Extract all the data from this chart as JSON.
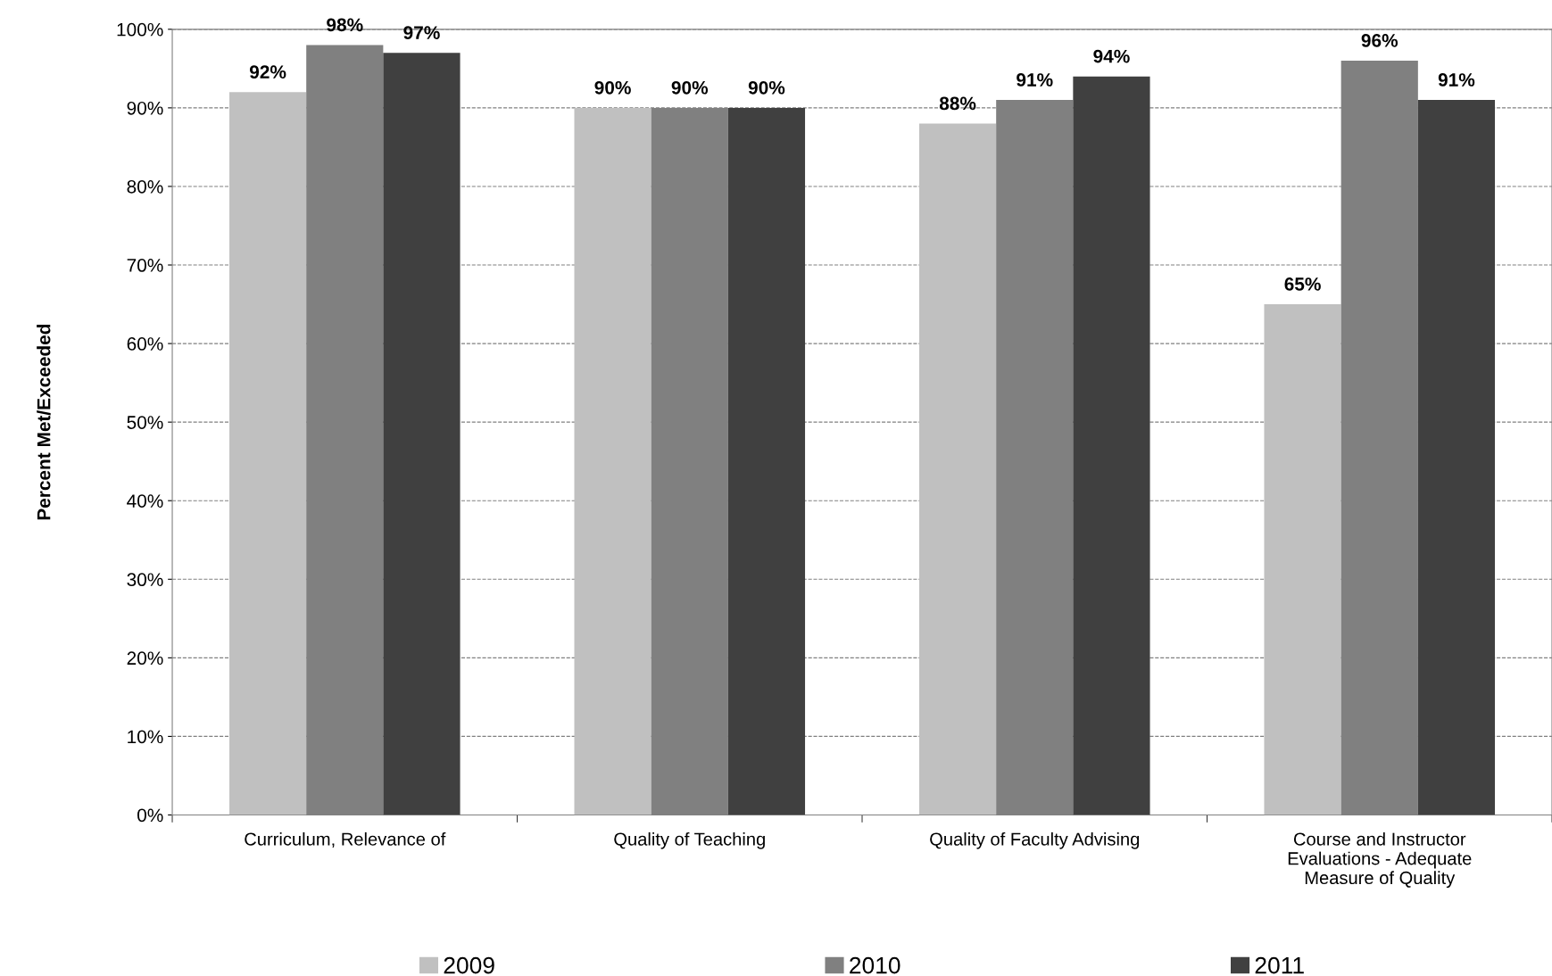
{
  "chart_data": {
    "type": "bar",
    "ylabel": "Percent Met/Exceeded",
    "categories": [
      "Curriculum, Relevance of",
      "Quality of Teaching",
      "Quality of Faculty Advising",
      "Course and Instructor\nEvaluations - Adequate\nMeasure of Quality"
    ],
    "series": [
      {
        "name": "2009",
        "color": "#c0c0c0",
        "values": [
          92,
          90,
          88,
          65
        ],
        "value_labels": [
          "92%",
          "90%",
          "88%",
          "65%"
        ]
      },
      {
        "name": "2010",
        "color": "#808080",
        "values": [
          98,
          90,
          91,
          96
        ],
        "value_labels": [
          "98%",
          "90%",
          "91%",
          "96%"
        ]
      },
      {
        "name": "2011",
        "color": "#404040",
        "values": [
          97,
          90,
          94,
          91
        ],
        "value_labels": [
          "97%",
          "90%",
          "94%",
          "91%"
        ]
      }
    ],
    "ylim": [
      0,
      100
    ],
    "yticks": [
      {
        "value": 0,
        "label": "0%"
      },
      {
        "value": 10,
        "label": "10%"
      },
      {
        "value": 20,
        "label": "20%"
      },
      {
        "value": 30,
        "label": "30%"
      },
      {
        "value": 40,
        "label": "40%"
      },
      {
        "value": 50,
        "label": "50%"
      },
      {
        "value": 60,
        "label": "60%"
      },
      {
        "value": 70,
        "label": "70%"
      },
      {
        "value": 80,
        "label": "80%"
      },
      {
        "value": 90,
        "label": "90%"
      },
      {
        "value": 100,
        "label": "100%"
      }
    ],
    "grid": "y",
    "legend": "bottom"
  }
}
